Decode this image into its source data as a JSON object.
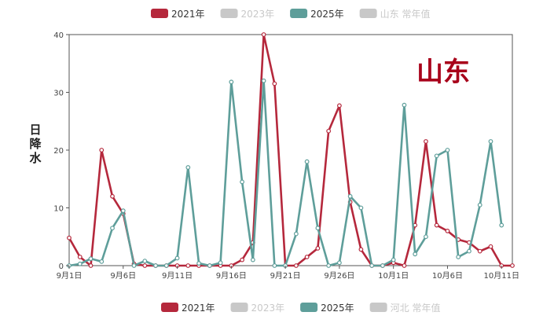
{
  "legend_top": [
    {
      "label": "2021年",
      "color": "#b5283c",
      "active": true
    },
    {
      "label": "2023年",
      "color": "#c8c8c8",
      "active": false
    },
    {
      "label": "2025年",
      "color": "#5e9e9a",
      "active": true
    },
    {
      "label": "山东 常年值",
      "color": "#c8c8c8",
      "active": false
    }
  ],
  "legend_bottom": [
    {
      "label": "2021年",
      "color": "#b5283c",
      "active": true
    },
    {
      "label": "2023年",
      "color": "#c8c8c8",
      "active": false
    },
    {
      "label": "2025年",
      "color": "#5e9e9a",
      "active": true
    },
    {
      "label": "河北 常年值",
      "color": "#c8c8c8",
      "active": false
    }
  ],
  "overlay_title": "山东",
  "chart_data": {
    "type": "line",
    "ylabel": "日降水",
    "ylim": [
      0,
      40
    ],
    "yticks": [
      0,
      10,
      20,
      30,
      40
    ],
    "x": [
      "9月1日",
      "9月2日",
      "9月3日",
      "9月4日",
      "9月5日",
      "9月6日",
      "9月7日",
      "9月8日",
      "9月9日",
      "9月10日",
      "9月11日",
      "9月12日",
      "9月13日",
      "9月14日",
      "9月15日",
      "9月16日",
      "9月17日",
      "9月18日",
      "9月19日",
      "9月20日",
      "9月21日",
      "9月22日",
      "9月23日",
      "9月24日",
      "9月25日",
      "9月26日",
      "9月27日",
      "9月28日",
      "9月29日",
      "9月30日",
      "10月1日",
      "10月2日",
      "10月3日",
      "10月4日",
      "10月5日",
      "10月6日",
      "10月7日",
      "10月8日",
      "10月9日",
      "10月10日",
      "10月11日",
      "10月12日"
    ],
    "xtick_labels": [
      "9月1日",
      "9月6日",
      "9月11日",
      "9月16日",
      "9月21日",
      "9月26日",
      "10月1日",
      "10月6日",
      "10月11日"
    ],
    "series": [
      {
        "name": "2021年",
        "color": "#b5283c",
        "values": [
          4.8,
          1.5,
          0,
          20,
          12,
          9,
          0.3,
          0,
          0,
          0,
          0,
          0,
          0,
          0,
          0,
          0,
          1,
          4,
          40,
          31.5,
          0,
          0,
          1.5,
          3,
          23.3,
          27.7,
          11,
          2.8,
          0,
          0,
          0.5,
          0,
          7,
          21.5,
          7,
          6,
          4.5,
          4,
          2.5,
          3.3,
          0,
          0
        ]
      },
      {
        "name": "2025年",
        "color": "#5e9e9a",
        "values": [
          0,
          0.3,
          1.2,
          0.7,
          6.5,
          9.5,
          0,
          0.8,
          0,
          0,
          1.3,
          17,
          0.4,
          0,
          0.5,
          31.8,
          14.5,
          1,
          32,
          0,
          0,
          5.5,
          18,
          6.5,
          0,
          0.5,
          12,
          10,
          0,
          0,
          1,
          27.8,
          2,
          5,
          19,
          20,
          1.5,
          2.5,
          10.5,
          21.5,
          7,
          null
        ]
      }
    ]
  }
}
